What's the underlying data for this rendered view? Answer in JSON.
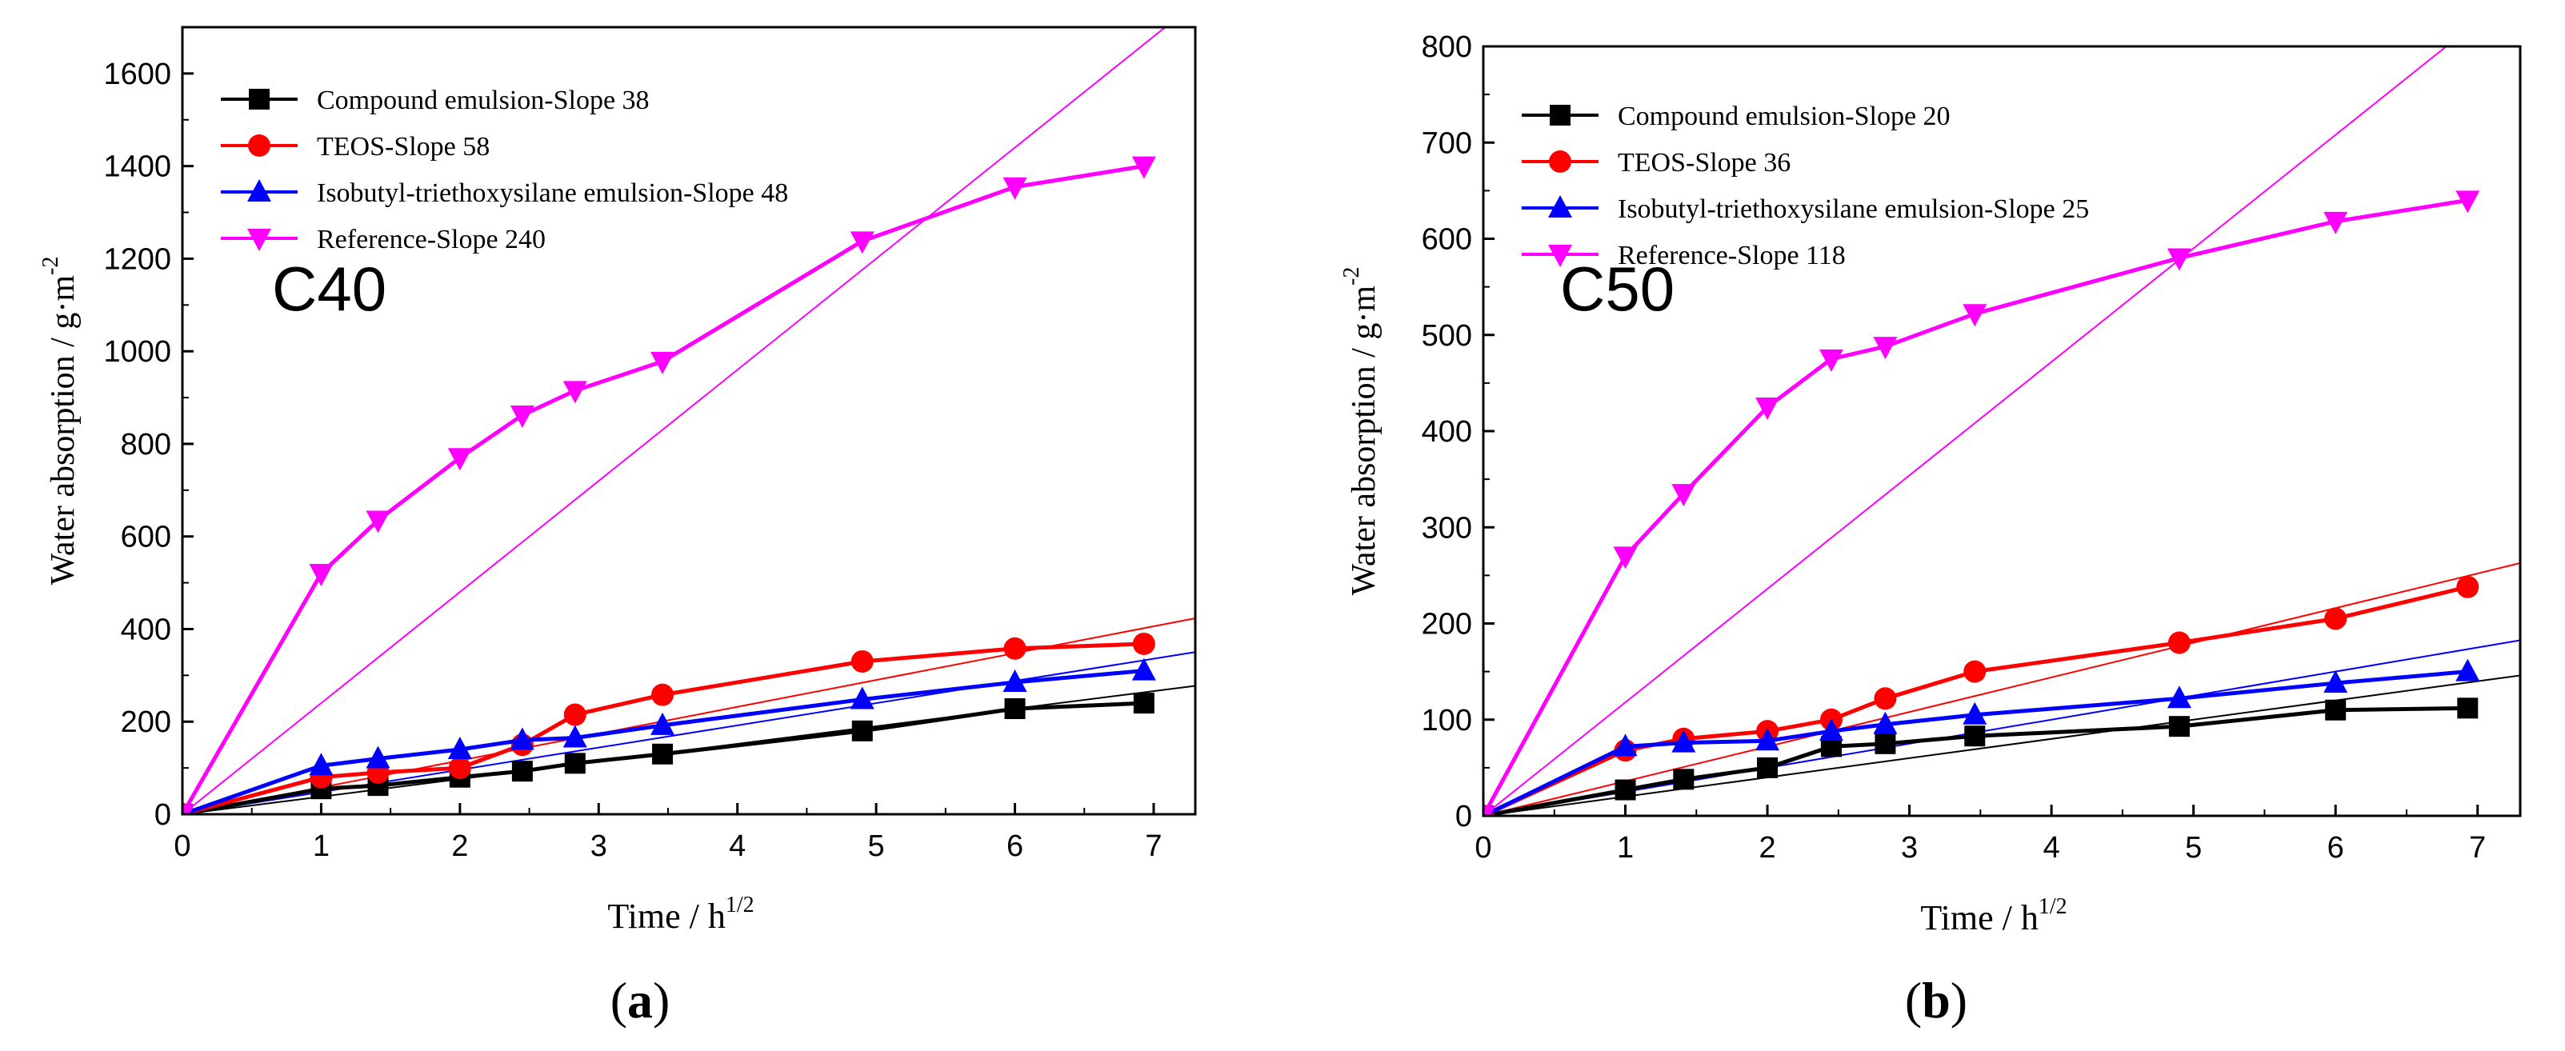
{
  "chart_data": [
    {
      "type": "line",
      "panel_label": "a",
      "annotation": "C40",
      "xlabel": "Time / h",
      "xlabel_sup": "1/2",
      "ylabel": "Water absorption / g·m",
      "ylabel_sup": "-2",
      "xlim": [
        0,
        7.3
      ],
      "ylim": [
        0,
        1700
      ],
      "xticks": [
        0,
        1,
        2,
        3,
        4,
        5,
        6,
        7
      ],
      "yticks": [
        0,
        200,
        400,
        600,
        800,
        1000,
        1200,
        1400,
        1600
      ],
      "legend_position": "top-left",
      "series": [
        {
          "name": "Compound emulsion-Slope 38",
          "color": "#000000",
          "marker": "square",
          "slope": 38,
          "x": [
            0,
            1,
            1.41,
            2,
            2.45,
            2.83,
            3.46,
            4.9,
            6,
            6.93
          ],
          "y": [
            0,
            55,
            62,
            80,
            93,
            110,
            130,
            180,
            228,
            240
          ]
        },
        {
          "name": "TEOS-Slope 58",
          "color": "#ff0000",
          "marker": "circle",
          "slope": 58,
          "x": [
            0,
            1,
            1.41,
            2,
            2.45,
            2.83,
            3.46,
            4.9,
            6,
            6.93
          ],
          "y": [
            0,
            80,
            90,
            100,
            150,
            215,
            258,
            330,
            358,
            368
          ]
        },
        {
          "name": "Isobutyl-triethoxysilane emulsion-Slope 48",
          "color": "#0000ff",
          "marker": "triangle-up",
          "slope": 48,
          "x": [
            0,
            1,
            1.41,
            2,
            2.45,
            2.83,
            3.46,
            4.9,
            6,
            6.93
          ],
          "y": [
            0,
            105,
            120,
            140,
            160,
            165,
            192,
            248,
            285,
            310
          ]
        },
        {
          "name": "Reference-Slope 240",
          "color": "#ff00ff",
          "marker": "triangle-down",
          "slope": 240,
          "x": [
            0,
            1,
            1.41,
            2,
            2.45,
            2.83,
            3.46,
            4.9,
            6,
            6.93
          ],
          "y": [
            0,
            520,
            635,
            770,
            862,
            915,
            978,
            1238,
            1355,
            1400
          ]
        }
      ]
    },
    {
      "type": "line",
      "panel_label": "b",
      "annotation": "C50",
      "xlabel": "Time / h",
      "xlabel_sup": "1/2",
      "ylabel": "Water absorption / g·m",
      "ylabel_sup": "-2",
      "xlim": [
        0,
        7.3
      ],
      "ylim": [
        0,
        800
      ],
      "xticks": [
        0,
        1,
        2,
        3,
        4,
        5,
        6,
        7
      ],
      "yticks": [
        0,
        100,
        200,
        300,
        400,
        500,
        600,
        700,
        800
      ],
      "legend_position": "top-left",
      "series": [
        {
          "name": "Compound emulsion-Slope 20",
          "color": "#000000",
          "marker": "square",
          "slope": 20,
          "x": [
            0,
            1,
            1.41,
            2,
            2.45,
            2.83,
            3.46,
            4.9,
            6,
            6.93
          ],
          "y": [
            0,
            27,
            38,
            50,
            72,
            75,
            83,
            93,
            110,
            112
          ]
        },
        {
          "name": "TEOS-Slope 36",
          "color": "#ff0000",
          "marker": "circle",
          "slope": 36,
          "x": [
            0,
            1,
            1.41,
            2,
            2.45,
            2.83,
            3.46,
            4.9,
            6,
            6.93
          ],
          "y": [
            0,
            68,
            80,
            88,
            100,
            122,
            150,
            180,
            205,
            238
          ]
        },
        {
          "name": "Isobutyl-triethoxysilane emulsion-Slope 25",
          "color": "#0000ff",
          "marker": "triangle-up",
          "slope": 25,
          "x": [
            0,
            1,
            1.41,
            2,
            2.45,
            2.83,
            3.46,
            4.9,
            6,
            6.93
          ],
          "y": [
            0,
            72,
            76,
            78,
            88,
            95,
            105,
            122,
            138,
            150
          ]
        },
        {
          "name": "Reference-Slope 118",
          "color": "#ff00ff",
          "marker": "triangle-down",
          "slope": 118,
          "x": [
            0,
            1,
            1.41,
            2,
            2.45,
            2.83,
            3.46,
            4.9,
            6,
            6.93
          ],
          "y": [
            0,
            270,
            335,
            425,
            475,
            488,
            522,
            580,
            618,
            640
          ]
        }
      ]
    }
  ]
}
